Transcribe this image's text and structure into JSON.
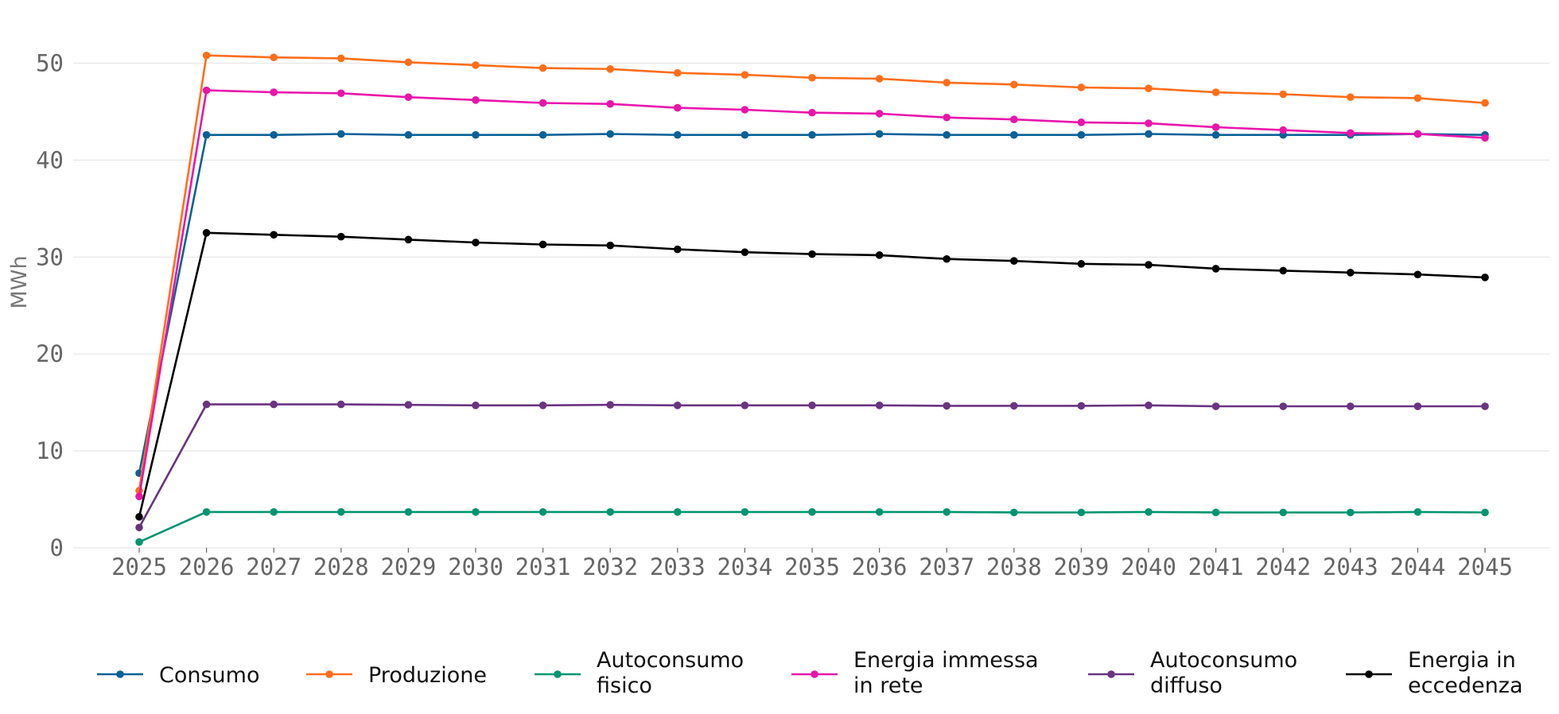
{
  "chart_data": {
    "type": "line",
    "title": "",
    "xlabel": "",
    "ylabel": "MWh",
    "ylim": [
      0,
      55
    ],
    "yticks": [
      0,
      10,
      20,
      30,
      40,
      50
    ],
    "grid": "horizontal",
    "legend_position": "bottom",
    "x": [
      "2025",
      "2026",
      "2027",
      "2028",
      "2029",
      "2030",
      "2031",
      "2032",
      "2033",
      "2034",
      "2035",
      "2036",
      "2037",
      "2038",
      "2039",
      "2040",
      "2041",
      "2042",
      "2043",
      "2044",
      "2045"
    ],
    "series": [
      {
        "name": "Consumo",
        "color": "#0a6196",
        "values": [
          7.7,
          42.6,
          42.6,
          42.7,
          42.6,
          42.6,
          42.6,
          42.7,
          42.6,
          42.6,
          42.6,
          42.7,
          42.6,
          42.6,
          42.6,
          42.7,
          42.6,
          42.6,
          42.6,
          42.7,
          42.6
        ]
      },
      {
        "name": "Produzione",
        "color": "#ff6e1a",
        "values": [
          5.9,
          50.8,
          50.6,
          50.5,
          50.1,
          49.8,
          49.5,
          49.4,
          49.0,
          48.8,
          48.5,
          48.4,
          48.0,
          47.8,
          47.5,
          47.4,
          47.0,
          46.8,
          46.5,
          46.4,
          45.9
        ]
      },
      {
        "name": "Autoconsumo fisico",
        "color": "#009470",
        "values": [
          0.6,
          3.7,
          3.7,
          3.7,
          3.7,
          3.7,
          3.7,
          3.7,
          3.7,
          3.7,
          3.7,
          3.7,
          3.7,
          3.65,
          3.65,
          3.7,
          3.65,
          3.65,
          3.65,
          3.7,
          3.65
        ]
      },
      {
        "name": "Energia immessa in rete",
        "color": "#e815aa",
        "values": [
          5.3,
          47.2,
          47.0,
          46.9,
          46.5,
          46.2,
          45.9,
          45.8,
          45.4,
          45.2,
          44.9,
          44.8,
          44.4,
          44.2,
          43.9,
          43.8,
          43.4,
          43.1,
          42.8,
          42.7,
          42.3
        ]
      },
      {
        "name": "Autoconsumo diffuso",
        "color": "#6a3480",
        "values": [
          2.1,
          14.8,
          14.8,
          14.8,
          14.75,
          14.7,
          14.7,
          14.75,
          14.7,
          14.7,
          14.7,
          14.7,
          14.65,
          14.65,
          14.65,
          14.7,
          14.6,
          14.6,
          14.6,
          14.6,
          14.6
        ]
      },
      {
        "name": "Energia in eccedenza",
        "color": "#000000",
        "values": [
          3.2,
          32.5,
          32.3,
          32.1,
          31.8,
          31.5,
          31.3,
          31.2,
          30.8,
          30.5,
          30.3,
          30.2,
          29.8,
          29.6,
          29.3,
          29.2,
          28.8,
          28.6,
          28.4,
          28.2,
          27.9
        ]
      }
    ],
    "legend": [
      {
        "lines": [
          "Consumo"
        ],
        "color": "#0a6196"
      },
      {
        "lines": [
          "Produzione"
        ],
        "color": "#ff6e1a"
      },
      {
        "lines": [
          "Autoconsumo",
          "fisico"
        ],
        "color": "#009470"
      },
      {
        "lines": [
          "Energia immessa",
          "in rete"
        ],
        "color": "#e815aa"
      },
      {
        "lines": [
          "Autoconsumo",
          "diffuso"
        ],
        "color": "#6a3480"
      },
      {
        "lines": [
          "Energia in",
          "eccedenza"
        ],
        "color": "#000000"
      }
    ]
  }
}
